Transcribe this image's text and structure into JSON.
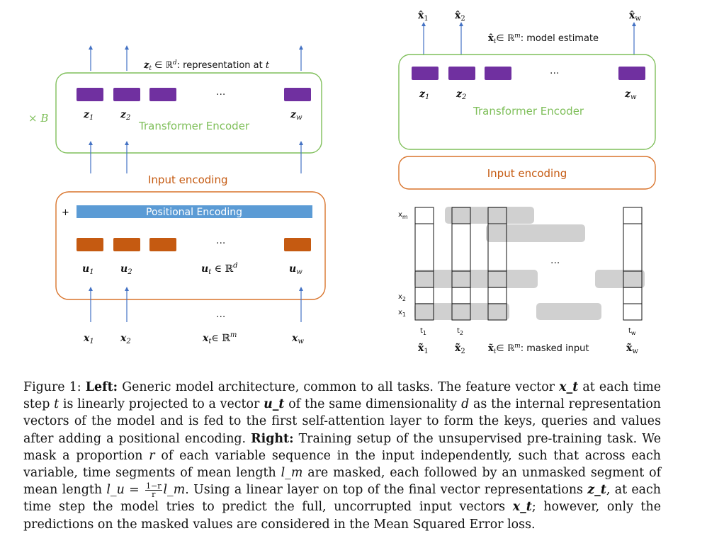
{
  "left": {
    "repeat_label": "× B",
    "z_annotation": "z_t ∈ ℝ^d: representation at t",
    "z_labels": [
      "z1",
      "z2",
      "zw"
    ],
    "encoder_title": "Transformer Encoder",
    "input_encoding": "Input encoding",
    "plus": "+",
    "positional_encoding": "Positional Encoding",
    "u_labels": [
      "u1",
      "u2",
      "ut ∈ ℝ^d",
      "uw"
    ],
    "x_labels": [
      "x1",
      "x2",
      "xt∈ ℝ^m",
      "xw"
    ],
    "ellipsis": "···"
  },
  "right": {
    "xhat_labels": [
      "x̂1",
      "x̂2",
      "x̂w"
    ],
    "xhat_annotation": "x̂t∈ ℝ^m: model estimate",
    "z_labels": [
      "z1",
      "z2",
      "zw"
    ],
    "encoder_title": "Transformer Encoder",
    "input_encoding": "Input encoding",
    "var_labels": [
      "xm",
      "x2",
      "x1"
    ],
    "time_labels": [
      "t1",
      "t2",
      "tw"
    ],
    "xtilde_labels": [
      "x̃1",
      "x̃2",
      "x̃t∈ ℝ^m: masked input",
      "x̃w"
    ],
    "ellipsis": "···"
  },
  "caption": {
    "figure_label": "Figure 1:",
    "left_label": "Left:",
    "text1": "Generic model architecture, common to all tasks. The feature vector ",
    "xt": "x_t",
    "text2": " at each time step ",
    "t": "t",
    "text3": " is linearly projected to a vector ",
    "ut": "u_t",
    "text4": " of the same dimensionality ",
    "d": "d",
    "text5": " as the internal representation vectors of the model and is fed to the first self-attention layer to form the keys, queries and values after adding a positional encoding. ",
    "right_label": "Right:",
    "text6": " Training setup of the unsupervised pre-training task. We mask a proportion ",
    "r": "r",
    "text7": " of each variable sequence in the input independently, such that across each variable, time segments of mean length ",
    "lm": "l_m",
    "text8": " are masked, each followed by an unmasked segment of mean length ",
    "lu_eq": "l_u = ",
    "frac_num": "1−r",
    "frac_den": "r",
    "lm2": "l_m",
    "text9": ". Using a linear layer on top of the final vector representations ",
    "zt": "z_t",
    "text10": ", at each time step the model tries to predict the full, uncorrupted input vectors ",
    "xt2": "x_t",
    "text11": "; however, only the predictions on the masked values are considered in the Mean Squared Error loss."
  },
  "colors": {
    "encoder_box": "#7fbf5a",
    "input_box": "#d9742c",
    "purple": "#7030a0",
    "orange": "#c55a11",
    "positional": "#5b9bd5",
    "arrow": "#4472c4",
    "mask": "#d0d0d0"
  }
}
